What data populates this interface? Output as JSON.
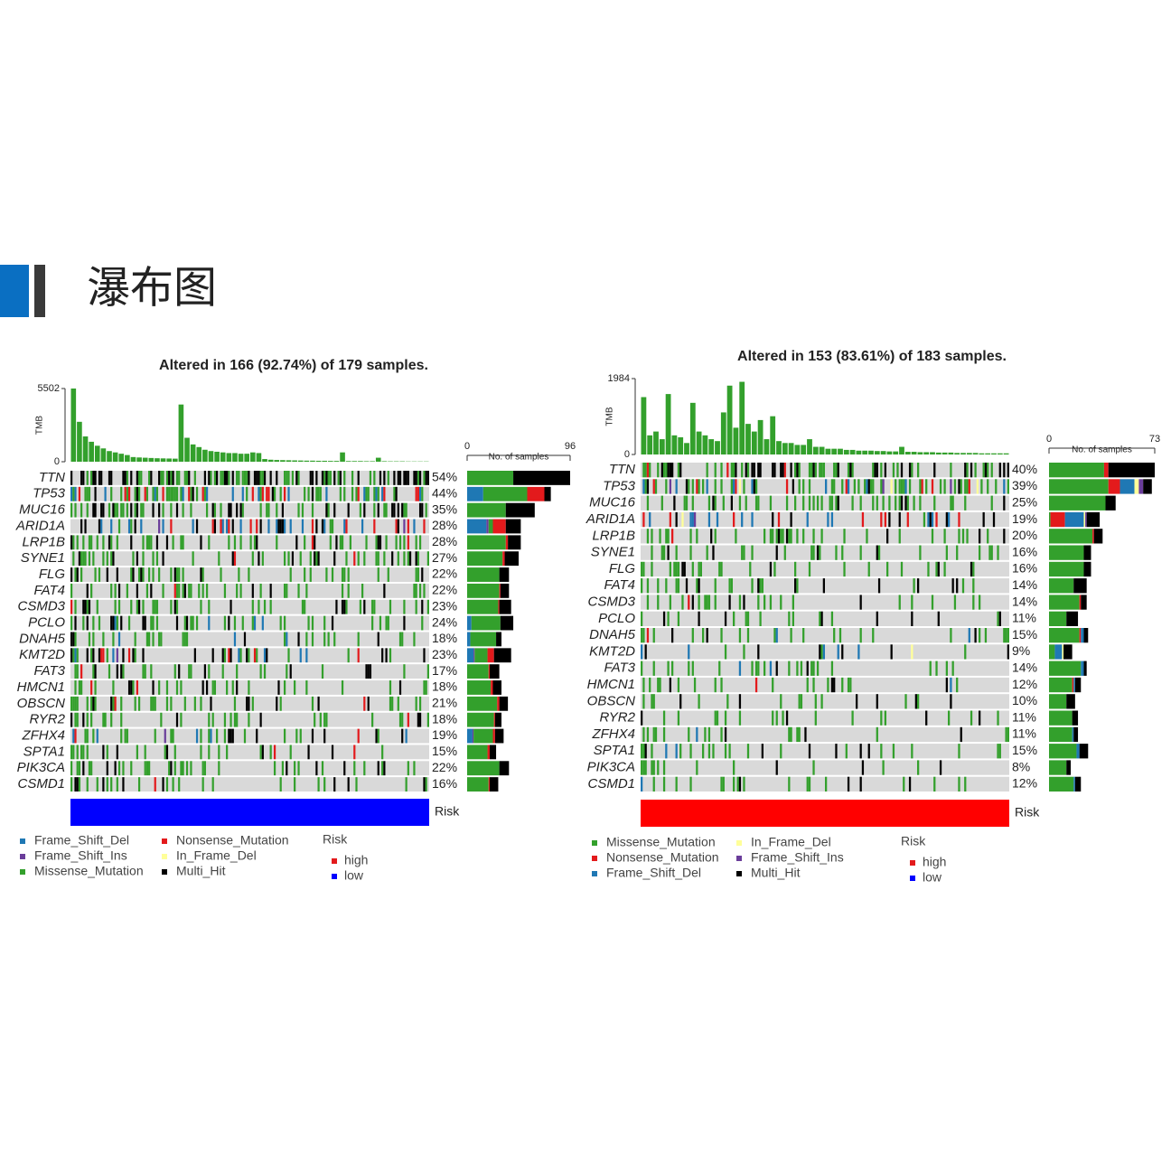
{
  "header": {
    "title": "瀑布图"
  },
  "chart_data": [
    {
      "type": "oncoplot",
      "title": "Altered in 166 (92.74%) of 179 samples.",
      "tmb_label": "TMB",
      "tmb_ylim": [
        0,
        5502
      ],
      "tmb_yticks": [
        0,
        5502
      ],
      "tmb_color": "#33a02c",
      "tmb": [
        5502,
        3000,
        1900,
        1500,
        1200,
        1000,
        800,
        700,
        600,
        500,
        350,
        320,
        300,
        280,
        260,
        250,
        240,
        230,
        4300,
        1800,
        1300,
        1100,
        900,
        800,
        750,
        700,
        650,
        650,
        600,
        600,
        700,
        650,
        200,
        150,
        130,
        120,
        110,
        100,
        90,
        80,
        80,
        70,
        70,
        60,
        60,
        700,
        50,
        50,
        50,
        40,
        40,
        300,
        40,
        30,
        30,
        30,
        20,
        20,
        20,
        20
      ],
      "categories": [
        "TTN",
        "TP53",
        "MUC16",
        "ARID1A",
        "LRP1B",
        "SYNE1",
        "FLG",
        "FAT4",
        "CSMD3",
        "PCLO",
        "DNAH5",
        "KMT2D",
        "FAT3",
        "HMCN1",
        "OBSCN",
        "RYR2",
        "ZFHX4",
        "SPTA1",
        "PIK3CA",
        "CSMD1"
      ],
      "percent_labels": [
        "54%",
        "44%",
        "35%",
        "28%",
        "28%",
        "27%",
        "22%",
        "22%",
        "23%",
        "24%",
        "18%",
        "23%",
        "17%",
        "18%",
        "21%",
        "18%",
        "19%",
        "15%",
        "22%",
        "16%"
      ],
      "side_label": "No. of samples",
      "xlim": [
        0,
        96
      ],
      "xticks": [
        0,
        96
      ],
      "series": [
        {
          "name": "Frame_Shift_Del",
          "color": "#1f78b4",
          "values": [
            0,
            15,
            0,
            18,
            0,
            0,
            0,
            0,
            0,
            4,
            3,
            6,
            0,
            0,
            0,
            0,
            5,
            0,
            0,
            0
          ]
        },
        {
          "name": "Frame_Shift_Ins",
          "color": "#6a3d9a",
          "values": [
            0,
            0,
            0,
            2,
            0,
            0,
            0,
            0,
            0,
            0,
            0,
            1,
            0,
            0,
            0,
            0,
            1,
            0,
            0,
            0
          ]
        },
        {
          "name": "Missense_Mutation",
          "color": "#33a02c",
          "values": [
            43,
            41,
            36,
            4,
            36,
            33,
            30,
            30,
            29,
            27,
            24,
            12,
            20,
            22,
            28,
            25,
            18,
            19,
            30,
            20
          ]
        },
        {
          "name": "Nonsense_Mutation",
          "color": "#e31a1c",
          "values": [
            0,
            16,
            0,
            12,
            2,
            2,
            0,
            1,
            1,
            0,
            0,
            6,
            1,
            2,
            2,
            1,
            2,
            2,
            0,
            1
          ]
        },
        {
          "name": "In_Frame_Del",
          "color": "#ffff99",
          "values": [
            0,
            0,
            0,
            0,
            0,
            0,
            0,
            0,
            0,
            0,
            0,
            0,
            0,
            0,
            0,
            0,
            0,
            0,
            0,
            0
          ]
        },
        {
          "name": "Multi_Hit",
          "color": "#000000",
          "values": [
            53,
            6,
            27,
            14,
            12,
            13,
            9,
            8,
            11,
            12,
            5,
            16,
            9,
            8,
            8,
            6,
            8,
            6,
            9,
            8
          ]
        }
      ],
      "risk_label": "Risk",
      "risk_color": "#0000ff",
      "risk_legend": {
        "title": "Risk",
        "items": [
          {
            "name": "high",
            "color": "#e31a1c"
          },
          {
            "name": "low",
            "color": "#0000ff"
          }
        ]
      }
    },
    {
      "type": "oncoplot",
      "title": "Altered in 153 (83.61%) of 183 samples.",
      "tmb_label": "TMB",
      "tmb_ylim": [
        0,
        1984
      ],
      "tmb_yticks": [
        0,
        1984
      ],
      "tmb_color": "#33a02c",
      "tmb": [
        1500,
        500,
        600,
        400,
        1580,
        500,
        450,
        300,
        1350,
        600,
        500,
        400,
        350,
        1100,
        1800,
        700,
        1900,
        800,
        600,
        900,
        400,
        1000,
        350,
        300,
        300,
        250,
        250,
        400,
        200,
        200,
        150,
        150,
        150,
        120,
        120,
        100,
        100,
        100,
        90,
        90,
        80,
        80,
        200,
        70,
        70,
        60,
        60,
        60,
        50,
        50,
        50,
        40,
        40,
        40,
        40,
        30,
        30,
        30,
        30,
        30
      ],
      "categories": [
        "TTN",
        "TP53",
        "MUC16",
        "ARID1A",
        "LRP1B",
        "SYNE1",
        "FLG",
        "FAT4",
        "CSMD3",
        "PCLO",
        "DNAH5",
        "KMT2D",
        "FAT3",
        "HMCN1",
        "OBSCN",
        "RYR2",
        "ZFHX4",
        "SPTA1",
        "PIK3CA",
        "CSMD1"
      ],
      "percent_labels": [
        "40%",
        "39%",
        "25%",
        "19%",
        "20%",
        "16%",
        "16%",
        "14%",
        "14%",
        "11%",
        "15%",
        "9%",
        "14%",
        "12%",
        "10%",
        "11%",
        "11%",
        "15%",
        "8%",
        "12%"
      ],
      "side_label": "No. of samples",
      "xlim": [
        0,
        73
      ],
      "xticks": [
        0,
        73
      ],
      "series": [
        {
          "name": "Missense_Mutation",
          "color": "#33a02c",
          "values": [
            38,
            41,
            39,
            1,
            30,
            24,
            24,
            17,
            21,
            12,
            21,
            4,
            22,
            16,
            12,
            16,
            16,
            19,
            12,
            17
          ]
        },
        {
          "name": "Nonsense_Mutation",
          "color": "#e31a1c",
          "values": [
            3,
            8,
            0,
            10,
            1,
            0,
            0,
            0,
            1,
            0,
            1,
            0,
            0,
            1,
            0,
            0,
            0,
            0,
            0,
            0
          ]
        },
        {
          "name": "Frame_Shift_Del",
          "color": "#1f78b4",
          "values": [
            0,
            10,
            0,
            13,
            0,
            0,
            0,
            0,
            0,
            0,
            2,
            5,
            2,
            1,
            0,
            0,
            1,
            2,
            0,
            1
          ]
        },
        {
          "name": "In_Frame_Del",
          "color": "#ffff99",
          "values": [
            0,
            3,
            0,
            1,
            0,
            0,
            0,
            0,
            0,
            0,
            0,
            1,
            0,
            0,
            0,
            0,
            0,
            0,
            0,
            0
          ]
        },
        {
          "name": "Frame_Shift_Ins",
          "color": "#6a3d9a",
          "values": [
            0,
            3,
            0,
            1,
            0,
            0,
            0,
            0,
            0,
            0,
            0,
            0,
            0,
            0,
            0,
            0,
            0,
            0,
            0,
            0
          ]
        },
        {
          "name": "Multi_Hit",
          "color": "#000000",
          "values": [
            32,
            6,
            7,
            9,
            6,
            5,
            5,
            9,
            4,
            8,
            3,
            6,
            2,
            4,
            6,
            4,
            3,
            6,
            3,
            4
          ]
        }
      ],
      "risk_label": "Risk",
      "risk_color": "#ff0000",
      "risk_legend": {
        "title": "Risk",
        "items": [
          {
            "name": "high",
            "color": "#e31a1c"
          },
          {
            "name": "low",
            "color": "#0000ff"
          }
        ]
      }
    }
  ]
}
